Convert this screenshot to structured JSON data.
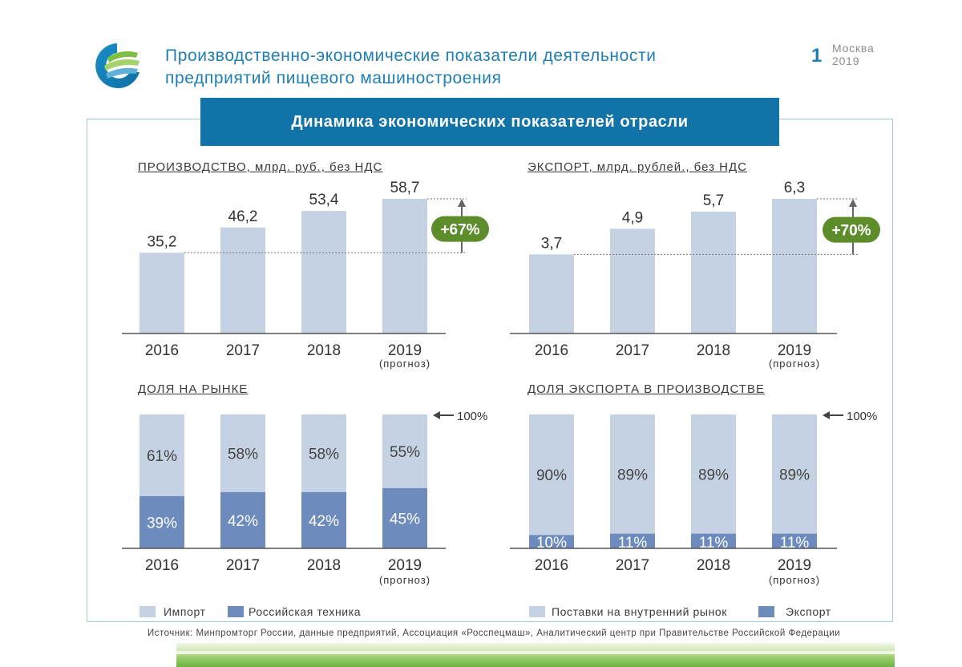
{
  "header": {
    "title_line1": "Производственно-экономические показатели деятельности",
    "title_line2": "предприятий пищевого машиностроения",
    "page_number": "1",
    "city": "Москва",
    "year": "2019"
  },
  "banner": {
    "title": "Динамика экономических показателей отрасли"
  },
  "colors": {
    "light_bar": "#c5d2e3",
    "dark_bar": "#6d8bbd",
    "banner": "#1173a8",
    "badge": "#5c8d2a",
    "title_blue": "#1f7fb4"
  },
  "legend_left": {
    "item1": "Импорт",
    "item2": "Российская техника"
  },
  "legend_right": {
    "item1": "Поставки на внутренний рынок",
    "item2": "Экспорт"
  },
  "source": "Источник: Минпромторг России, данные предприятий, Ассоциация «Росспецмаш», Аналитический центр при Правительстве Российской Федерации",
  "chart_data": [
    {
      "type": "bar",
      "title": "ПРОИЗВОДСТВО, млрд. руб., без НДС",
      "categories": [
        "2016",
        "2017",
        "2018",
        "2019"
      ],
      "sublabels": [
        "",
        "",
        "",
        "(прогноз)"
      ],
      "values": [
        35.2,
        46.2,
        53.4,
        58.7
      ],
      "value_labels": [
        "35,2",
        "46,2",
        "53,4",
        "58,7"
      ],
      "ylim": [
        0,
        60
      ],
      "growth_label": "+67%"
    },
    {
      "type": "bar",
      "title": "ЭКСПОРТ, млрд. рублей., без НДС",
      "categories": [
        "2016",
        "2017",
        "2018",
        "2019"
      ],
      "sublabels": [
        "",
        "",
        "",
        "(прогноз)"
      ],
      "values": [
        3.7,
        4.9,
        5.7,
        6.3
      ],
      "value_labels": [
        "3,7",
        "4,9",
        "5,7",
        "6,3"
      ],
      "ylim": [
        0,
        6.45
      ],
      "growth_label": "+70%"
    },
    {
      "type": "bar",
      "stacked": true,
      "title": "ДОЛЯ НА РЫНКЕ",
      "categories": [
        "2016",
        "2017",
        "2018",
        "2019"
      ],
      "sublabels": [
        "",
        "",
        "",
        "(прогноз)"
      ],
      "total_label": "100%",
      "series": [
        {
          "name": "Российская техника",
          "values": [
            39,
            42,
            42,
            45
          ],
          "labels": [
            "39%",
            "42%",
            "42%",
            "45%"
          ]
        },
        {
          "name": "Импорт",
          "values": [
            61,
            58,
            58,
            55
          ],
          "labels": [
            "61%",
            "58%",
            "58%",
            "55%"
          ]
        }
      ]
    },
    {
      "type": "bar",
      "stacked": true,
      "title": "ДОЛЯ ЭКСПОРТА В ПРОИЗВОДСТВЕ",
      "categories": [
        "2016",
        "2017",
        "2018",
        "2019"
      ],
      "sublabels": [
        "",
        "",
        "",
        "(прогноз)"
      ],
      "total_label": "100%",
      "series": [
        {
          "name": "Экспорт",
          "values": [
            10,
            11,
            11,
            11
          ],
          "labels": [
            "10%",
            "11%",
            "11%",
            "11%"
          ]
        },
        {
          "name": "Поставки на внутренний рынок",
          "values": [
            90,
            89,
            89,
            89
          ],
          "labels": [
            "90%",
            "89%",
            "89%",
            "89%"
          ]
        }
      ]
    }
  ]
}
